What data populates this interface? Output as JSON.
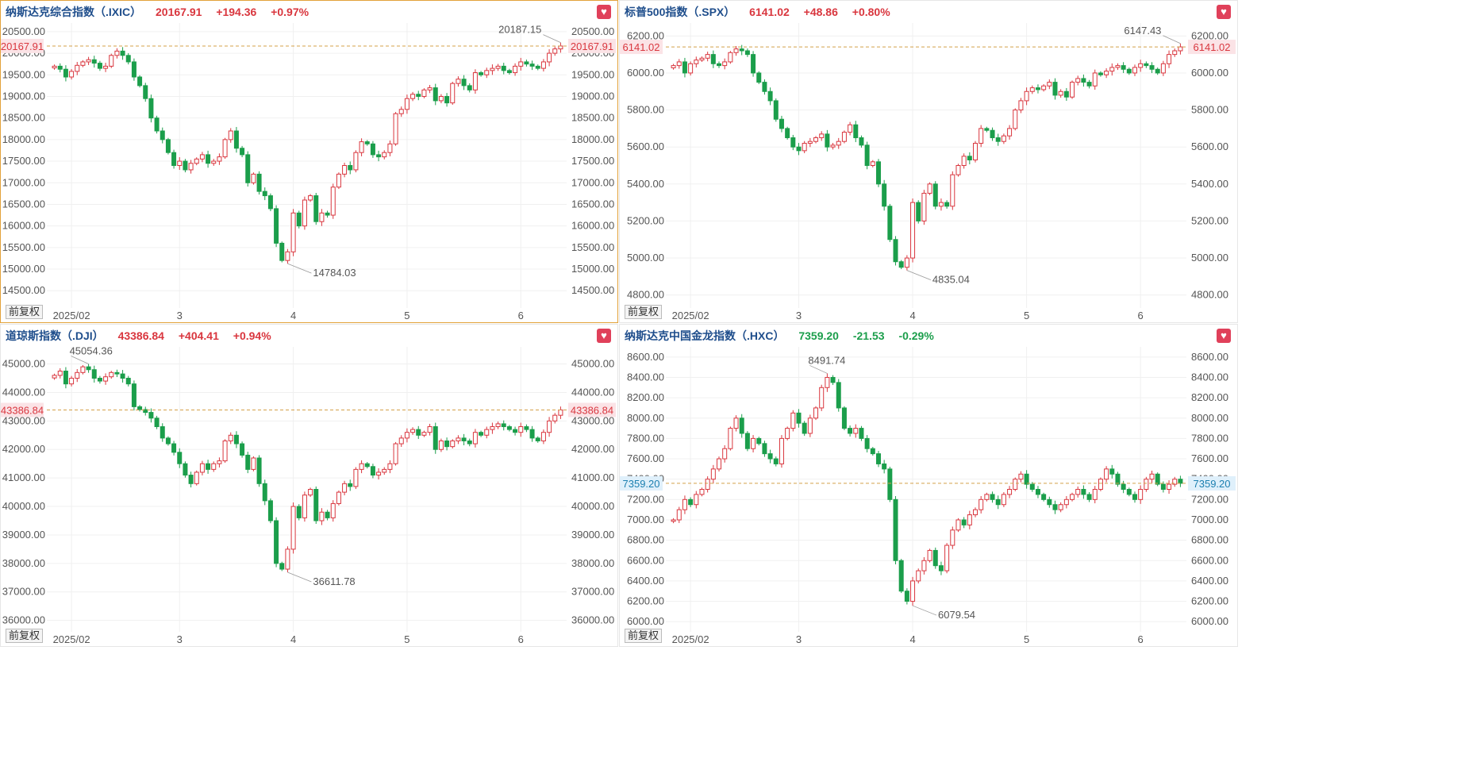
{
  "adjust_label": "前复权",
  "fav_icon": "heart-icon",
  "colors": {
    "up": "#d9363e",
    "down": "#1b9e4b",
    "ref": "#d4a04a",
    "grid": "#f0f0f0"
  },
  "chart_data": [
    {
      "type": "candlestick",
      "name": "纳斯达克综合指数（.IXIC）",
      "last": "20167.91",
      "change": "+194.36",
      "pct": "+0.97%",
      "direction": "up",
      "active": true,
      "yticks": [
        "20500.00",
        "20000.00",
        "19500.00",
        "19000.00",
        "18500.00",
        "18000.00",
        "17500.00",
        "17000.00",
        "16500.00",
        "16000.00",
        "15500.00",
        "15000.00",
        "14500.00"
      ],
      "ylim": [
        14100,
        20700
      ],
      "xticks": [
        "2025/02",
        "3",
        "4",
        "5",
        "6"
      ],
      "xtick_index": [
        3,
        22,
        42,
        62,
        82
      ],
      "high_label": "20187.15",
      "low_label": "14784.03",
      "closes": [
        19700,
        19630,
        19450,
        19580,
        19720,
        19800,
        19850,
        19770,
        19650,
        19700,
        19950,
        20050,
        19950,
        19800,
        19450,
        19250,
        18950,
        18500,
        18200,
        18000,
        17700,
        17400,
        17500,
        17300,
        17450,
        17550,
        17650,
        17450,
        17500,
        17600,
        18000,
        18200,
        17800,
        17650,
        17000,
        17200,
        16800,
        16700,
        16400,
        15600,
        15200,
        15400,
        16300,
        16000,
        16600,
        16700,
        16100,
        16300,
        16250,
        16900,
        17200,
        17400,
        17300,
        17700,
        17950,
        17900,
        17650,
        17600,
        17700,
        17900,
        18600,
        18700,
        18950,
        19050,
        19000,
        19150,
        19200,
        18900,
        19000,
        18850,
        19300,
        19400,
        19250,
        19150,
        19550,
        19500,
        19600,
        19650,
        19700,
        19600,
        19550,
        19700,
        19800,
        19750,
        19700,
        19650,
        19800,
        20000,
        20100,
        20167.91
      ]
    },
    {
      "type": "candlestick",
      "name": "标普500指数（.SPX）",
      "last": "6141.02",
      "change": "+48.86",
      "pct": "+0.80%",
      "direction": "up",
      "active": false,
      "yticks": [
        "6200.00",
        "6000.00",
        "5800.00",
        "5600.00",
        "5400.00",
        "5200.00",
        "5000.00",
        "4800.00"
      ],
      "ylim": [
        4730,
        6270
      ],
      "xticks": [
        "2025/02",
        "3",
        "4",
        "5",
        "6"
      ],
      "xtick_index": [
        3,
        22,
        42,
        62,
        82
      ],
      "high_label": "6147.43",
      "low_label": "4835.04",
      "closes": [
        6040,
        6060,
        6000,
        6050,
        6070,
        6080,
        6100,
        6050,
        6040,
        6060,
        6110,
        6130,
        6120,
        6100,
        6000,
        5950,
        5900,
        5850,
        5750,
        5700,
        5650,
        5600,
        5580,
        5620,
        5630,
        5650,
        5670,
        5600,
        5610,
        5630,
        5680,
        5720,
        5650,
        5610,
        5500,
        5520,
        5400,
        5280,
        5100,
        4980,
        4950,
        5000,
        5300,
        5200,
        5350,
        5400,
        5280,
        5300,
        5280,
        5450,
        5500,
        5550,
        5530,
        5620,
        5700,
        5690,
        5650,
        5630,
        5660,
        5700,
        5800,
        5850,
        5900,
        5920,
        5910,
        5930,
        5950,
        5880,
        5900,
        5870,
        5950,
        5970,
        5950,
        5930,
        6000,
        5990,
        6010,
        6030,
        6040,
        6020,
        6000,
        6030,
        6050,
        6040,
        6020,
        6000,
        6050,
        6100,
        6120,
        6141.02
      ]
    },
    {
      "type": "candlestick",
      "name": "道琼斯指数（.DJI）",
      "last": "43386.84",
      "change": "+404.41",
      "pct": "+0.94%",
      "direction": "up",
      "active": false,
      "yticks": [
        "45000.00",
        "44000.00",
        "43000.00",
        "42000.00",
        "41000.00",
        "40000.00",
        "39000.00",
        "38000.00",
        "37000.00",
        "36000.00"
      ],
      "ylim": [
        35600,
        45600
      ],
      "xticks": [
        "2025/02",
        "3",
        "4",
        "5",
        "6"
      ],
      "xtick_index": [
        3,
        22,
        42,
        62,
        82
      ],
      "high_label": "45054.36",
      "low_label": "36611.78",
      "closes": [
        44600,
        44750,
        44300,
        44500,
        44700,
        44900,
        44800,
        44500,
        44400,
        44550,
        44700,
        44650,
        44500,
        44300,
        43500,
        43400,
        43300,
        43100,
        42800,
        42400,
        42200,
        41900,
        41500,
        41100,
        40800,
        41200,
        41500,
        41300,
        41500,
        41600,
        42300,
        42500,
        42200,
        41800,
        41300,
        41700,
        40800,
        40200,
        39500,
        38000,
        37800,
        38500,
        40000,
        39600,
        40400,
        40600,
        39500,
        39800,
        39600,
        40100,
        40500,
        40800,
        40700,
        41300,
        41500,
        41400,
        41100,
        41200,
        41300,
        41500,
        42200,
        42400,
        42600,
        42700,
        42500,
        42600,
        42800,
        42000,
        42300,
        42100,
        42300,
        42400,
        42300,
        42200,
        42600,
        42500,
        42700,
        42800,
        42900,
        42800,
        42700,
        42600,
        42800,
        42700,
        42400,
        42300,
        42600,
        43000,
        43200,
        43386.84
      ]
    },
    {
      "type": "candlestick",
      "name": "纳斯达克中国金龙指数（.HXC）",
      "last": "7359.20",
      "change": "-21.53",
      "pct": "-0.29%",
      "direction": "down",
      "active": false,
      "yticks": [
        "8600.00",
        "8400.00",
        "8200.00",
        "8000.00",
        "7800.00",
        "7600.00",
        "7400.00",
        "7200.00",
        "7000.00",
        "6800.00",
        "6600.00",
        "6400.00",
        "6200.00",
        "6000.00"
      ],
      "ylim": [
        5900,
        8700
      ],
      "xticks": [
        "2025/02",
        "3",
        "4",
        "5",
        "6"
      ],
      "xtick_index": [
        3,
        22,
        42,
        62,
        82
      ],
      "high_label": "8491.74",
      "low_label": "6079.54",
      "closes": [
        7000,
        7100,
        7200,
        7150,
        7250,
        7300,
        7400,
        7500,
        7600,
        7700,
        7900,
        8000,
        7850,
        7700,
        7800,
        7750,
        7650,
        7600,
        7550,
        7800,
        7900,
        8050,
        7950,
        7850,
        8000,
        8100,
        8300,
        8400,
        8350,
        8100,
        7900,
        7850,
        7900,
        7800,
        7700,
        7650,
        7550,
        7500,
        7200,
        6600,
        6300,
        6200,
        6400,
        6500,
        6600,
        6700,
        6550,
        6500,
        6750,
        6900,
        7000,
        6950,
        7050,
        7100,
        7200,
        7250,
        7200,
        7150,
        7250,
        7300,
        7400,
        7450,
        7350,
        7300,
        7250,
        7200,
        7150,
        7100,
        7150,
        7200,
        7250,
        7300,
        7250,
        7200,
        7300,
        7400,
        7500,
        7450,
        7350,
        7300,
        7250,
        7200,
        7300,
        7400,
        7450,
        7350,
        7300,
        7350,
        7400,
        7359.2
      ]
    }
  ]
}
